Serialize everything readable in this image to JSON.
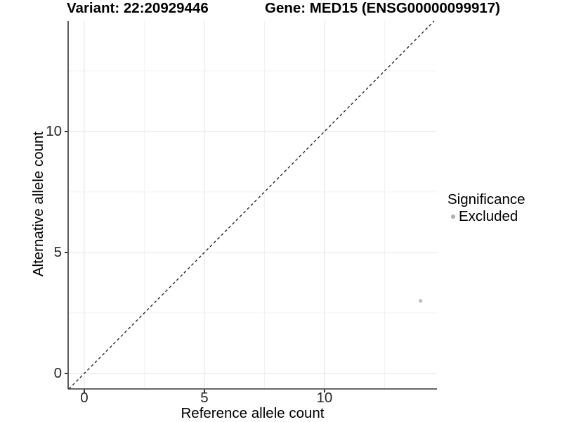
{
  "chart_data": {
    "type": "scatter",
    "titles": {
      "variant": "Variant: 22:20929446",
      "gene": "Gene: MED15 (ENSG00000099917)"
    },
    "xlabel": "Reference allele count",
    "ylabel": "Alternative allele count",
    "xlim": [
      -0.67,
      14.68
    ],
    "ylim": [
      -0.64,
      14.56
    ],
    "x_ticks": [
      0,
      5,
      10
    ],
    "y_ticks": [
      0,
      5,
      10
    ],
    "x_minor_grid": [
      2.5,
      7.5,
      12.5
    ],
    "y_minor_grid": [
      2.5,
      7.5,
      12.5
    ],
    "grid": true,
    "reference_line": {
      "kind": "identity",
      "style": "dashed",
      "color": "#1a1a1a"
    },
    "series": [
      {
        "name": "Excluded",
        "color": "#bdbdbd",
        "points": [
          {
            "x": 14,
            "y": 3
          }
        ]
      }
    ],
    "legend": {
      "position": "right",
      "title": "Significance",
      "items": [
        {
          "label": "Excluded",
          "color": "#adadad"
        }
      ]
    },
    "colors": {
      "axis_line": "#333333",
      "tick_text": "#262626",
      "grid_major": "#e7e7e7",
      "grid_minor": "#f1f1f1",
      "background": "#ffffff"
    }
  }
}
